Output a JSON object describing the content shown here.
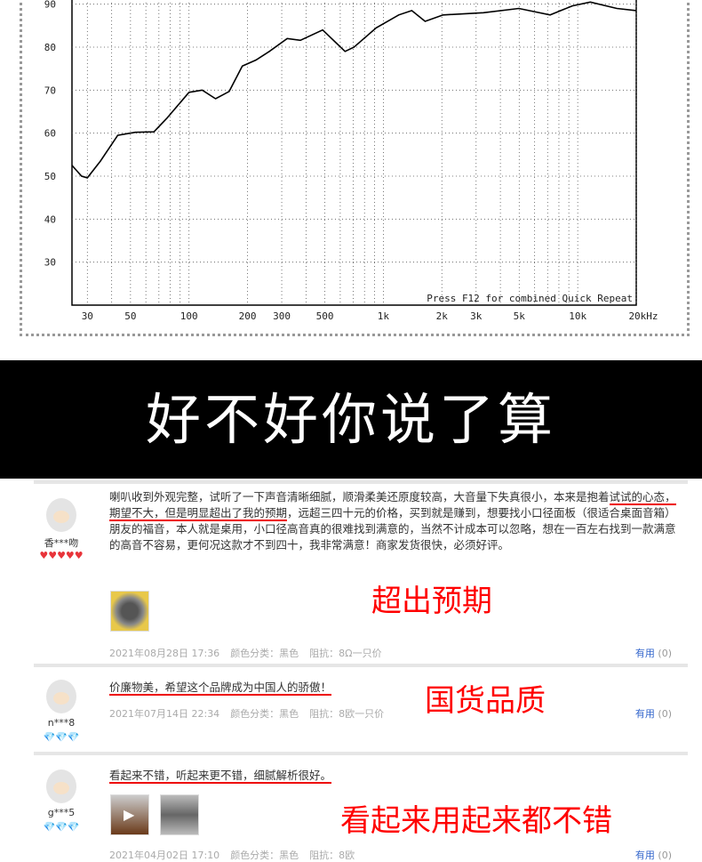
{
  "chart_data": {
    "type": "line",
    "xscale": "log",
    "xlim": [
      25,
      20000
    ],
    "ylim": [
      20,
      92
    ],
    "grid": true,
    "x_ticks": [
      30,
      50,
      100,
      200,
      300,
      500,
      1000,
      2000,
      3000,
      5000,
      10000,
      20000
    ],
    "x_tick_labels": [
      "30",
      "50",
      "100",
      "200",
      "300",
      "500",
      "1k",
      "2k",
      "3k",
      "5k",
      "10k",
      "20kHz"
    ],
    "y_ticks": [
      30,
      40,
      50,
      60,
      70,
      80,
      90
    ],
    "y_tick_labels": [
      "30",
      "40",
      "50",
      "60",
      "70",
      "80",
      "90"
    ],
    "annotation": "Press F12 for combined Quick Repeat",
    "series": [
      {
        "color": "#000000",
        "x": [
          25,
          28,
          30,
          35,
          43,
          53,
          66,
          77,
          100,
          117,
          137,
          161,
          188,
          221,
          259,
          320,
          374,
          487,
          635,
          706,
          919,
          1200,
          1400,
          1640,
          2030,
          3270,
          4980,
          7210,
          9380,
          11600,
          15900,
          20000
        ],
        "y": [
          52.5,
          50,
          49.6,
          53.5,
          59.5,
          60.2,
          60.3,
          63.5,
          69.5,
          70,
          68,
          69.7,
          75.6,
          77,
          79,
          82,
          81.6,
          84,
          79,
          80,
          84.5,
          87.5,
          88.5,
          86,
          87.5,
          88,
          89,
          87.5,
          89.6,
          90.5,
          89,
          88.5
        ]
      }
    ]
  },
  "banner": "好不好你说了算",
  "reviews": [
    {
      "user": "香***吻",
      "badge": "♥♥♥♥♥",
      "badge_color": "#e8343a",
      "text_a": "喇叭收到外观完整，试听了一下声音清晰细腻，顺滑柔美还原度较高，大音量下失真很小，本来是抱着",
      "text_ul": "试试的心态，期望不大，但是明显超出了我的预期",
      "text_b": "，远超三四十元的价格，买到就是赚到，想要找小口径面板（很适合桌面音箱）朋友的福音，本人就是桌用，小口径高音真的很难找到满意的，当然不计成本可以忽略，想在一百左右找到一款满意的高音不容易，更何况这款才不到四十，我非常满意！商家发货很快，必须好评。",
      "date": "2021年08月28日 17:36",
      "color": "颜色分类：黑色",
      "impedance": "阻抗：8Ω一只价",
      "useful": "有用",
      "useful_count": "(0)",
      "tag": "超出预期"
    },
    {
      "user": "n***8",
      "badge": "💎💎💎",
      "badge_color": "#3aa0e8",
      "text_ul": "价廉物美，希望这个品牌成为中国人的骄傲！",
      "date": "2021年07月14日 22:34",
      "color": "颜色分类：黑色",
      "impedance": "阻抗：8欧一只价",
      "useful": "有用",
      "useful_count": "(0)",
      "tag": "国货品质"
    },
    {
      "user": "g***5",
      "badge": "💎💎💎",
      "badge_color": "#3aa0e8",
      "text_ul": "看起来不错，听起来更不错，细腻解析很好。",
      "date": "2021年04月02日 17:10",
      "color": "颜色分类：黑色",
      "impedance": "阻抗：8欧",
      "useful": "有用",
      "useful_count": "(0)",
      "tag": "看起来用起来都不错"
    }
  ]
}
